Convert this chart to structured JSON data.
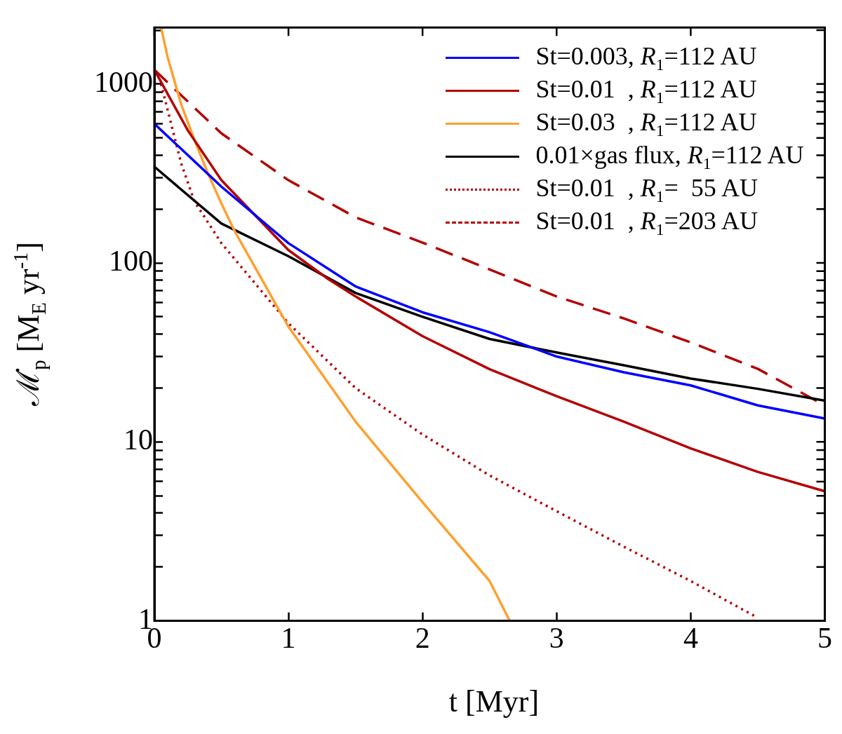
{
  "chart_data": {
    "type": "line",
    "xlabel": "t [Myr]",
    "ylabel": "ℳ̇$_{p}$ [M$_{E}$ yr$^{-1}$]",
    "log": "y",
    "grid": false,
    "legend": "top right",
    "marker": "none",
    "xlim": [
      0,
      5
    ],
    "xticks": [
      0,
      1,
      2,
      3,
      4,
      5
    ],
    "ylim": [
      1,
      2070
    ],
    "yticks": [
      1,
      {
        "value": 2,
        "label": null
      },
      {
        "value": 3,
        "label": null
      },
      {
        "value": 4,
        "label": null
      },
      {
        "value": 5,
        "label": null
      },
      {
        "value": 6,
        "label": null
      },
      {
        "value": 7,
        "label": null
      },
      {
        "value": 8,
        "label": null
      },
      {
        "value": 9,
        "label": null
      },
      10,
      {
        "value": 20,
        "label": null
      },
      {
        "value": 30,
        "label": null
      },
      {
        "value": 40,
        "label": null
      },
      {
        "value": 50,
        "label": null
      },
      {
        "value": 60,
        "label": null
      },
      {
        "value": 70,
        "label": null
      },
      {
        "value": 80,
        "label": null
      },
      {
        "value": 90,
        "label": null
      },
      100,
      {
        "value": 200,
        "label": null
      },
      {
        "value": 300,
        "label": null
      },
      {
        "value": 400,
        "label": null
      },
      {
        "value": 500,
        "label": null
      },
      {
        "value": 600,
        "label": null
      },
      {
        "value": 700,
        "label": null
      },
      {
        "value": 800,
        "label": null
      },
      {
        "value": 900,
        "label": null
      },
      1000,
      {
        "value": 2000,
        "label": null
      }
    ],
    "series": [
      {
        "name": "St=0.003, R$_{1}$=112 AU",
        "color": "#0000ff",
        "line_style": "solid",
        "x": [
          0,
          0.5,
          1,
          1.5,
          2,
          2.5,
          3,
          3.5,
          4,
          4.5,
          5
        ],
        "values": [
          600,
          267,
          129,
          74,
          53,
          41,
          30,
          24.5,
          20.7,
          16,
          13.5
        ]
      },
      {
        "name": "St=0.01  , R$_{1}$=112 AU",
        "color": "#b40000",
        "line_style": "solid",
        "x": [
          0,
          0.25,
          0.5,
          1,
          1.3,
          1.5,
          2,
          2.5,
          3,
          3.5,
          4,
          4.5,
          5
        ],
        "values": [
          1200,
          550,
          290,
          118,
          81,
          65,
          39,
          25.5,
          18,
          13,
          9.2,
          6.8,
          5.3
        ]
      },
      {
        "name": "St=0.03  , R$_{1}$=112 AU",
        "color": "#ffa030",
        "line_style": "solid",
        "x": [
          0.05,
          0.1,
          0.2,
          0.3,
          0.4,
          0.5,
          0.6,
          1,
          1.5,
          2,
          2.5,
          2.65
        ],
        "values": [
          2070,
          1400,
          770,
          485,
          316,
          215,
          150,
          44,
          13,
          4.6,
          1.67,
          1
        ]
      },
      {
        "name": "0.01×gas flux, R$_{1}$=112 AU",
        "color": "#000000",
        "line_style": "solid",
        "x": [
          0,
          0.5,
          1,
          1.5,
          2,
          2.5,
          3,
          3.5,
          4,
          4.5,
          5
        ],
        "values": [
          345,
          166,
          109,
          68,
          50,
          37.6,
          31.6,
          26.8,
          22.6,
          19.8,
          17
        ]
      },
      {
        "name": "St=0.01  , R$_{1}$=  55 AU",
        "color": "#b40000",
        "line_style": "dotted",
        "x": [
          0.05,
          0.1,
          0.2,
          0.3,
          0.5,
          1,
          1.5,
          2,
          2.5,
          3,
          3.5,
          4,
          4.5
        ],
        "values": [
          1000,
          710,
          360,
          220,
          129,
          46,
          20,
          11,
          6.5,
          4.1,
          2.6,
          1.67,
          1.04
        ]
      },
      {
        "name": "St=0.01  , R$_{1}$=203 AU",
        "color": "#b40000",
        "line_style": "dashed",
        "x": [
          0,
          0.5,
          1,
          1.5,
          2,
          2.5,
          3,
          3.5,
          4,
          4.5,
          5
        ],
        "values": [
          1200,
          530,
          290,
          180,
          130,
          92,
          65,
          49,
          36,
          25.6,
          16
        ]
      }
    ]
  }
}
